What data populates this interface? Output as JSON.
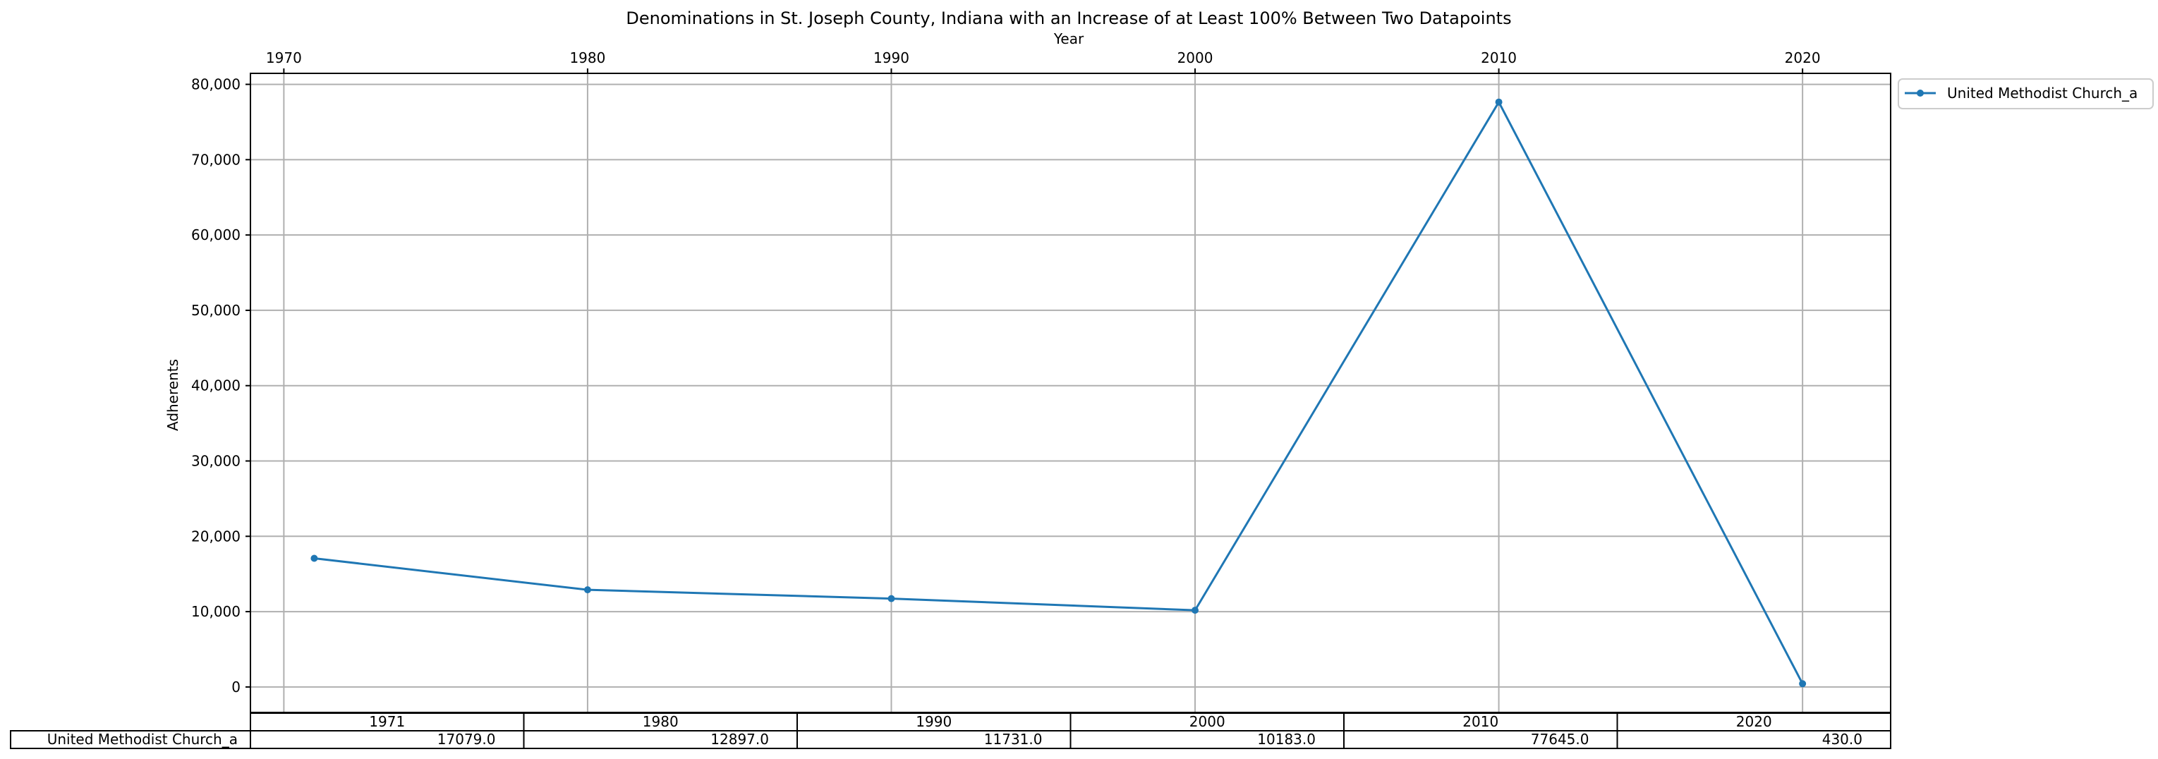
{
  "chart_data": {
    "type": "line",
    "title": "Denominations in St. Joseph County, Indiana with an Increase of at Least 100% Between Two Datapoints",
    "xlabel": "Year",
    "ylabel": "Adherents",
    "x_axis_position": "top",
    "x_ticks": [
      "1970",
      "1980",
      "1990",
      "2000",
      "2010",
      "2020"
    ],
    "y_ticks": [
      "0",
      "10,000",
      "20,000",
      "30,000",
      "40,000",
      "50,000",
      "60,000",
      "70,000",
      "80,000"
    ],
    "xlim": [
      1968.9,
      2022.9
    ],
    "ylim": [
      -3383,
      81458
    ],
    "grid": true,
    "legend_position": "outside-right-top",
    "colors": {
      "series": "#1f77b4",
      "grid": "#b0b0b0"
    },
    "x": [
      1971,
      1980,
      1990,
      2000,
      2010,
      2020
    ],
    "series": [
      {
        "name": "United Methodist Church_a",
        "values": [
          17079,
          12897,
          11731,
          10183,
          77645,
          430
        ]
      }
    ],
    "table": {
      "col_headers": [
        "1971",
        "1980",
        "1990",
        "2000",
        "2010",
        "2020"
      ],
      "rows": [
        {
          "label": "United Methodist Church_a",
          "cells": [
            "17079.0",
            "12897.0",
            "11731.0",
            "10183.0",
            "77645.0",
            "430.0"
          ]
        }
      ]
    }
  }
}
